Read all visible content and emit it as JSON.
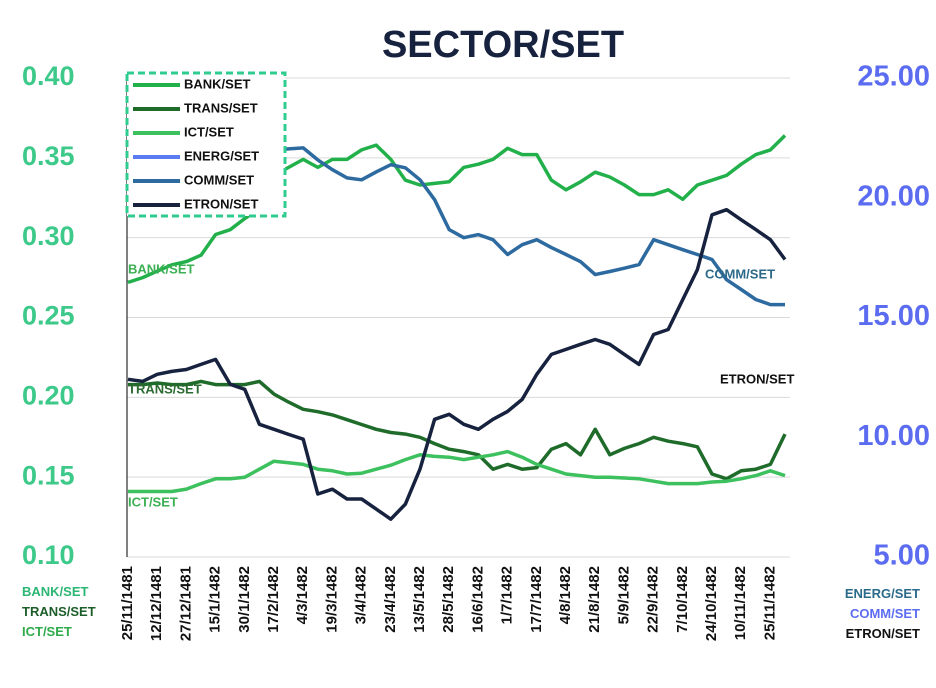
{
  "chart_data": {
    "type": "line",
    "title": "SECTOR/SET",
    "categories": [
      "25/11/1481",
      null,
      "12/12/1481",
      null,
      "27/12/1481",
      null,
      "15/1/1482",
      null,
      "30/1/1482",
      null,
      "17/2/1482",
      null,
      "4/3/1482",
      null,
      "19/3/1482",
      null,
      "3/4/1482",
      null,
      "23/4/1482",
      null,
      "13/5/1482",
      null,
      "28/5/1482",
      null,
      "16/6/1482",
      null,
      "1/7/1482",
      null,
      "17/7/1482",
      null,
      "4/8/1482",
      null,
      "21/8/1482",
      null,
      "5/9/1482",
      null,
      "22/9/1482",
      null,
      "7/10/1482",
      null,
      "24/10/1482",
      null,
      "10/11/1482",
      null,
      "25/11/1482",
      null
    ],
    "series": [
      {
        "name": "BANK/SET",
        "color": "#22b04b",
        "values": [
          0.272,
          0.275,
          0.279,
          0.283,
          0.285,
          0.289,
          0.302,
          0.305,
          0.312,
          0.318,
          0.339,
          0.344,
          0.349,
          0.344,
          0.349,
          0.349,
          0.355,
          0.358,
          0.349,
          0.336,
          0.333,
          0.334,
          0.335,
          0.344,
          0.346,
          0.349,
          0.356,
          0.352,
          0.352,
          0.336,
          0.33,
          0.335,
          0.341,
          0.338,
          0.333,
          0.327,
          0.327,
          0.33,
          0.324,
          0.333,
          0.336,
          0.339,
          0.346,
          0.352,
          0.355,
          0.364
        ]
      },
      {
        "name": "TRANS/SET",
        "color": "#1e6b2a",
        "values": [
          0.208,
          0.208,
          0.209,
          0.208,
          0.208,
          0.21,
          0.208,
          0.208,
          0.208,
          0.21,
          0.202,
          0.197,
          0.1925,
          0.191,
          0.189,
          0.186,
          0.183,
          0.18,
          0.178,
          0.177,
          0.175,
          0.171,
          0.1675,
          0.166,
          0.164,
          0.155,
          0.158,
          0.155,
          0.156,
          0.1675,
          0.171,
          0.164,
          0.18,
          0.164,
          0.168,
          0.171,
          0.175,
          0.1725,
          0.171,
          0.169,
          0.152,
          0.149,
          0.154,
          0.155,
          0.158,
          0.177
        ]
      },
      {
        "name": "ICT/SET",
        "color": "#3dc05e",
        "values": [
          0.141,
          0.141,
          0.141,
          0.141,
          0.1425,
          0.146,
          0.149,
          0.149,
          0.15,
          0.155,
          0.16,
          0.159,
          0.158,
          0.155,
          0.154,
          0.152,
          0.1525,
          0.155,
          0.1575,
          0.161,
          0.164,
          0.163,
          0.1625,
          0.161,
          0.1625,
          0.164,
          0.166,
          0.1625,
          0.158,
          0.155,
          0.152,
          0.151,
          0.15,
          0.15,
          0.1495,
          0.149,
          0.1475,
          0.146,
          0.146,
          0.146,
          0.147,
          0.1475,
          0.149,
          0.151,
          0.154,
          0.151
        ]
      },
      {
        "name": "ENERG/SET",
        "color": "#5b7cf0",
        "axis": "y2",
        "values": [
          null,
          null,
          null,
          null,
          null,
          null,
          null,
          null,
          null,
          null,
          null,
          null,
          null,
          null,
          null,
          null,
          null,
          null,
          null,
          null,
          null,
          null,
          null,
          null,
          null,
          null,
          null,
          null,
          null,
          null,
          null,
          null,
          null,
          null,
          null,
          null,
          null,
          null,
          null,
          null,
          null,
          null,
          null,
          null,
          null,
          null
        ]
      },
      {
        "name": "COMM/SET",
        "color": "#2d6aa0",
        "axis": "y2",
        "values": [
          20.96,
          21.08,
          21.25,
          21.38,
          21.17,
          21.38,
          21.58,
          21.5,
          21.67,
          21.79,
          22.0,
          22.04,
          22.08,
          21.58,
          21.17,
          20.83,
          20.75,
          21.08,
          21.38,
          21.25,
          20.75,
          19.92,
          18.67,
          18.33,
          18.46,
          18.25,
          17.63,
          18.04,
          18.25,
          17.92,
          17.63,
          17.33,
          16.79,
          16.92,
          17.06,
          17.21,
          18.25,
          18.04,
          17.83,
          17.63,
          17.42,
          16.58,
          16.17,
          15.75,
          15.54,
          15.54
        ]
      },
      {
        "name": "ETRON/SET",
        "color": "#17223f",
        "axis": "y2",
        "values": [
          12.42,
          12.33,
          12.63,
          12.75,
          12.83,
          13.04,
          13.25,
          12.21,
          12.0,
          10.54,
          10.33,
          10.12,
          9.92,
          7.63,
          7.83,
          7.42,
          7.42,
          7.0,
          6.58,
          7.21,
          8.67,
          10.75,
          10.96,
          10.54,
          10.33,
          10.75,
          11.08,
          11.58,
          12.63,
          13.46,
          13.67,
          13.88,
          14.08,
          13.88,
          13.46,
          13.04,
          14.29,
          14.5,
          15.75,
          17.0,
          19.29,
          19.5,
          19.08,
          18.67,
          18.25,
          17.42
        ]
      }
    ],
    "ylim": [
      0.1,
      0.4
    ],
    "yticks": [
      {
        "value": 0.1,
        "label": "0.10"
      },
      0.15,
      {
        "value": 0.2,
        "label": "0.20"
      },
      0.25,
      {
        "value": 0.3,
        "label": "0.30"
      },
      0.35,
      {
        "value": 0.4,
        "label": "0.40"
      }
    ],
    "y2lim": [
      5,
      25
    ],
    "y2ticks": [
      {
        "value": 5,
        "label": "5.00"
      },
      {
        "value": 10,
        "label": "10.00"
      },
      {
        "value": 15,
        "label": "15.00"
      },
      {
        "value": 20,
        "label": "20.00"
      },
      {
        "value": 25,
        "label": "25.00"
      }
    ],
    "ylabel": [
      "BANK/SET",
      "TRANS/SET",
      "ICT/SET"
    ],
    "ylabel_colors": [
      "#2bb673",
      "#1e5e2a",
      "#2eaa4a"
    ],
    "y2label": [
      "ENERG/SET",
      "COMM/SET",
      "ETRON/SET"
    ],
    "y2label_colors": [
      "#2a6a8a",
      "#5b6cf0",
      "#111111"
    ],
    "annotations": [
      "BANK/SET",
      "TRANS/SET",
      "ICT/SET",
      "COMM/SET",
      "ETRON/SET"
    ],
    "annotation_colors": [
      "#3cb054",
      "#2b6a30",
      "#3cb054",
      "#2d6a8a",
      "#111111"
    ],
    "grid": true,
    "legend": "upper left"
  }
}
